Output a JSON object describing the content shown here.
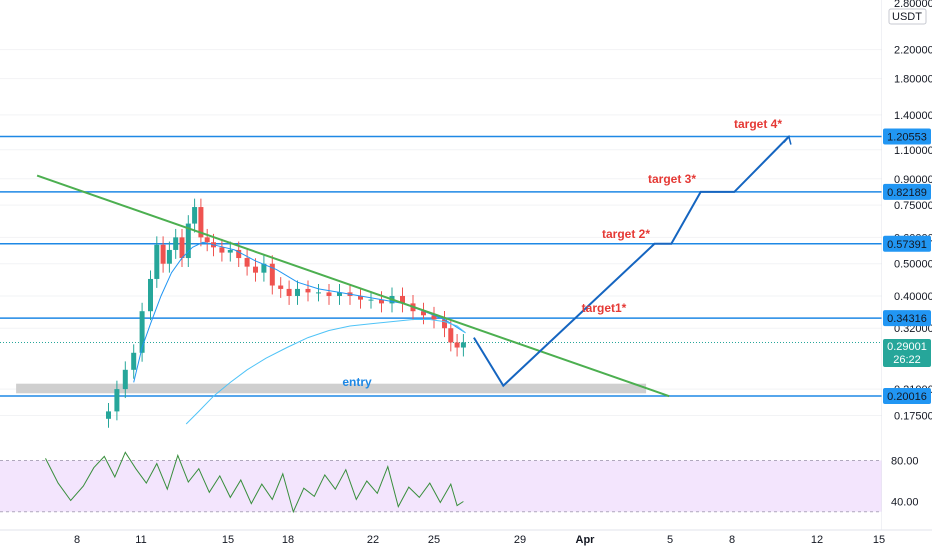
{
  "currency": "USDT",
  "price_axis": {
    "top_value": "2.80000",
    "labels": [
      "2.20000",
      "1.80000",
      "1.40000",
      "1.10000",
      "0.90000",
      "0.75000",
      "0.60000",
      "0.50000",
      "0.40000",
      "0.32000",
      "0.21000",
      "0.17500"
    ],
    "rsi_labels": [
      "80.00",
      "40.00"
    ]
  },
  "date_axis": {
    "labels": [
      "8",
      "11",
      "15",
      "18",
      "22",
      "25",
      "29",
      "Apr",
      "5",
      "8",
      "12",
      "15"
    ]
  },
  "levels": [
    {
      "label": "1.20553",
      "value": 1.20553
    },
    {
      "label": "0.82189",
      "value": 0.82189
    },
    {
      "label": "0.57391",
      "value": 0.57391
    },
    {
      "label": "0.34316",
      "value": 0.34316
    },
    {
      "label": "0.20016",
      "value": 0.20016
    }
  ],
  "current_price": {
    "label": "0.29001",
    "countdown": "26:22",
    "value": 0.29001
  },
  "annotations": {
    "target4": "target 4*",
    "target3": "target 3*",
    "target2": "target 2*",
    "target1": "target1*",
    "entry": "entry"
  },
  "colors": {
    "level_line": "#1e88e5",
    "trendline": "#4caf50",
    "up_candle": "#26a69a",
    "down_candle": "#ef5350",
    "annotation": "#e53935",
    "projection": "#1565c0",
    "rsi_band": "#f3e5fd",
    "rsi_line": "#388e3c",
    "entry_zone": "#cfcfcf",
    "current_badge": "#26a69a"
  },
  "chart_data": {
    "type": "line",
    "title": "",
    "xlabel": "",
    "ylabel": "",
    "scale": "log",
    "ylim": [
      0.155,
      3.1
    ],
    "x_range": [
      "Mar 6",
      "Apr 15"
    ],
    "horizontal_levels": [
      1.20553,
      0.82189,
      0.57391,
      0.34316,
      0.20016
    ],
    "price_series": {
      "x_days": [
        9.0,
        9.4,
        9.8,
        10.2,
        10.6,
        11.0,
        11.3,
        11.6,
        11.9,
        12.2,
        12.5,
        12.8,
        13.1,
        13.4,
        13.7,
        14.0,
        14.4,
        14.8,
        15.2,
        15.6,
        16.0,
        16.4,
        16.8,
        17.2,
        17.6,
        18.0,
        18.5,
        19.0,
        19.5,
        20.0,
        20.5,
        21.0,
        21.5,
        22.0,
        22.5,
        23.0,
        23.5,
        24.0,
        24.5,
        25.0,
        25.3,
        25.6,
        25.9
      ],
      "close": [
        0.18,
        0.21,
        0.24,
        0.27,
        0.36,
        0.45,
        0.57,
        0.5,
        0.55,
        0.6,
        0.52,
        0.66,
        0.74,
        0.6,
        0.58,
        0.56,
        0.54,
        0.55,
        0.52,
        0.49,
        0.47,
        0.5,
        0.43,
        0.42,
        0.4,
        0.42,
        0.41,
        0.41,
        0.4,
        0.41,
        0.4,
        0.39,
        0.39,
        0.38,
        0.4,
        0.38,
        0.36,
        0.35,
        0.34,
        0.32,
        0.29,
        0.28,
        0.29
      ]
    },
    "ma_short": {
      "x_days": [
        10.2,
        10.6,
        11.0,
        11.5,
        12.0,
        12.5,
        13.0,
        13.5,
        14.0,
        14.5,
        15.0,
        15.5,
        16.0,
        17.0,
        18.0,
        19.0,
        20.0,
        21.0,
        22.0,
        23.0,
        24.0,
        25.0,
        26.0
      ],
      "values": [
        0.22,
        0.28,
        0.33,
        0.4,
        0.47,
        0.52,
        0.56,
        0.58,
        0.57,
        0.56,
        0.55,
        0.53,
        0.51,
        0.48,
        0.44,
        0.42,
        0.41,
        0.4,
        0.39,
        0.38,
        0.36,
        0.34,
        0.31
      ]
    },
    "ma_long": {
      "x_days": [
        12.7,
        13.3,
        14.0,
        14.8,
        15.6,
        16.5,
        17.5,
        18.5,
        19.5,
        20.5,
        21.5,
        22.5,
        23.5,
        24.3,
        25.0,
        25.6,
        26.0
      ],
      "values": [
        0.165,
        0.18,
        0.2,
        0.22,
        0.24,
        0.26,
        0.28,
        0.3,
        0.315,
        0.325,
        0.33,
        0.335,
        0.34,
        0.34,
        0.335,
        0.325,
        0.31
      ]
    },
    "trendline": {
      "x_days": [
        5.6,
        35.7
      ],
      "values": [
        0.92,
        0.2
      ]
    },
    "projection": {
      "x_days": [
        26.4,
        27.8,
        35.0,
        35.8,
        37.2,
        38.8,
        41.4
      ],
      "values": [
        0.3,
        0.215,
        0.57391,
        0.57391,
        0.82189,
        0.82189,
        1.20553
      ]
    },
    "entry_zone": {
      "x_days": [
        4.6,
        34.6
      ],
      "range": [
        0.204,
        0.218
      ]
    },
    "rsi": {
      "ylim": [
        20,
        100
      ],
      "band": [
        30,
        80
      ],
      "x_days": [
        6.0,
        6.6,
        7.2,
        7.8,
        8.3,
        8.8,
        9.3,
        9.8,
        10.3,
        10.8,
        11.3,
        11.8,
        12.3,
        12.8,
        13.3,
        13.8,
        14.3,
        14.8,
        15.3,
        15.8,
        16.3,
        16.8,
        17.3,
        17.8,
        18.3,
        18.8,
        19.3,
        19.8,
        20.3,
        20.8,
        21.3,
        21.8,
        22.3,
        22.8,
        23.3,
        23.8,
        24.3,
        24.8,
        25.3,
        25.6,
        25.9
      ],
      "values": [
        82,
        58,
        41,
        55,
        73,
        84,
        64,
        88,
        72,
        58,
        77,
        52,
        85,
        59,
        72,
        49,
        65,
        44,
        61,
        38,
        57,
        42,
        67,
        30,
        53,
        45,
        66,
        52,
        71,
        42,
        60,
        48,
        74,
        35,
        54,
        44,
        58,
        39,
        57,
        36,
        40
      ]
    }
  }
}
